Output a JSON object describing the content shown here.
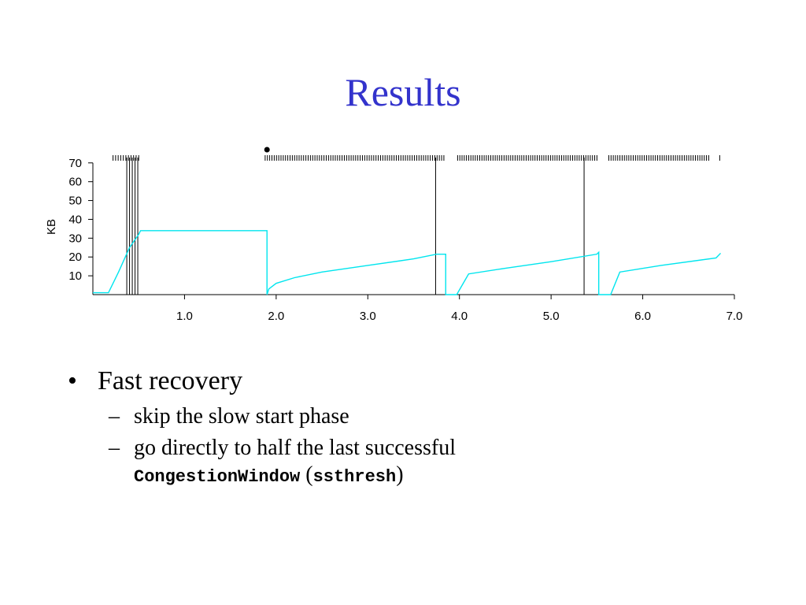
{
  "slide": {
    "title": "Results",
    "bullets": [
      {
        "text": "Fast recovery",
        "subs": [
          {
            "parts": [
              {
                "text": "skip the slow start phase",
                "code": false
              }
            ]
          },
          {
            "parts": [
              {
                "text": "go directly to half the last successful",
                "code": false
              },
              {
                "text": "CongestionWindow",
                "code": true
              },
              {
                "text": " (",
                "code": false
              },
              {
                "text": "ssthresh",
                "code": true
              },
              {
                "text": ")",
                "code": false
              }
            ]
          }
        ]
      }
    ]
  },
  "colors": {
    "title": "#3333cc",
    "window": "#00e5ee",
    "axis": "#000000"
  },
  "chart_data": {
    "type": "line",
    "ylabel": "KB",
    "xlim": [
      0,
      7.0
    ],
    "ylim": [
      0,
      72
    ],
    "x_ticks": [
      1.0,
      2.0,
      3.0,
      4.0,
      5.0,
      6.0,
      7.0
    ],
    "x_tick_labels": [
      "1.0",
      "2.0",
      "3.0",
      "4.0",
      "5.0",
      "6.0",
      "7.0"
    ],
    "y_ticks": [
      10,
      20,
      30,
      40,
      50,
      60,
      70
    ],
    "y_tick_labels": [
      "10",
      "20",
      "30",
      "40",
      "50",
      "60",
      "70"
    ],
    "series": [
      {
        "x": [
          0.0,
          0.17,
          0.28,
          0.4,
          0.5,
          0.52,
          0.53,
          1.0,
          1.5,
          1.9,
          1.9,
          1.92,
          2.0,
          2.2,
          2.5,
          3.0,
          3.5,
          3.75,
          3.85,
          3.85,
          3.9,
          3.97,
          4.1,
          4.5,
          5.0,
          5.5,
          5.52,
          5.52,
          5.58,
          5.65,
          5.75,
          6.2,
          6.8,
          6.85
        ],
        "y": [
          1,
          1,
          12,
          25,
          32,
          34,
          34,
          34,
          34,
          34,
          0,
          3,
          6,
          9,
          12,
          15.5,
          19,
          21.5,
          21.5,
          0,
          0,
          0,
          11,
          14,
          17.5,
          21.5,
          22.5,
          0,
          0,
          0,
          12,
          15.5,
          19.5,
          22
        ]
      }
    ],
    "vertical_events": [
      0.37,
      0.4,
      0.43,
      0.46,
      0.49,
      3.74,
      5.36
    ],
    "packet_tick_groups": [
      {
        "from": 0.22,
        "to": 0.5,
        "count": 11
      },
      {
        "from": 1.88,
        "to": 3.83,
        "count": 80
      },
      {
        "from": 3.98,
        "to": 5.5,
        "count": 64
      },
      {
        "from": 5.63,
        "to": 6.72,
        "count": 46
      },
      {
        "from": 6.84,
        "to": 6.84,
        "count": 1
      }
    ],
    "marker_x": 1.9
  }
}
